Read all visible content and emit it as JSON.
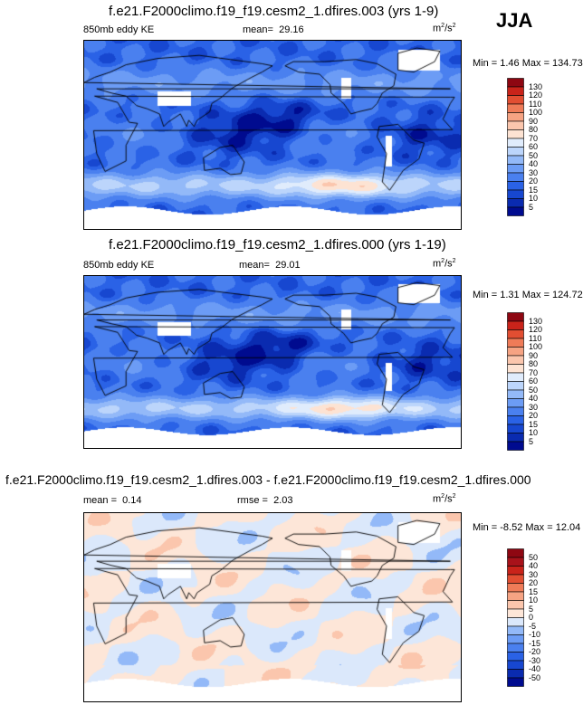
{
  "season": "JJA",
  "variable_label": "850mb eddy KE",
  "units_base": "m",
  "units_exp1": "2",
  "units_sep": "/s",
  "units_exp2": "2",
  "panels": [
    {
      "title": "f.e21.F2000climo.f19_f19.cesm2_1.dfires.003 (yrs 1-9)",
      "stat_label": "mean=",
      "stat_value": "29.16",
      "minmax": "Min =   1.46 Max = 134.73"
    },
    {
      "title": "f.e21.F2000climo.f19_f19.cesm2_1.dfires.000 (yrs 1-19)",
      "stat_label": "mean=",
      "stat_value": "29.01",
      "minmax": "Min =   1.31 Max = 124.72"
    },
    {
      "title": "f.e21.F2000climo.f19_f19.cesm2_1.dfires.003 - f.e21.F2000climo.f19_f19.cesm2_1.dfires.000",
      "stat_label": "mean =",
      "stat_value": "0.14",
      "stat2_label": "rmse =",
      "stat2_value": "2.03",
      "minmax": "Min =  -8.52 Max =  12.04"
    }
  ],
  "chart_data": [
    {
      "type": "heatmap",
      "title": "f.e21.F2000climo.f19_f19.cesm2_1.dfires.003 (yrs 1-9)",
      "variable": "850mb eddy KE",
      "mean": 29.16,
      "min": 1.46,
      "max": 134.73,
      "colorbar_levels": [
        "5",
        "10",
        "15",
        "20",
        "30",
        "40",
        "50",
        "60",
        "70",
        "80",
        "90",
        "100",
        "110",
        "120",
        "130"
      ],
      "colorbar_colors": [
        "#000b8f",
        "#0a2bb0",
        "#1747d0",
        "#2a62e6",
        "#4a80ef",
        "#6c9cf5",
        "#93b9f8",
        "#bcd5fb",
        "#e0ecfc",
        "#fde3d3",
        "#fbc6ad",
        "#f6a383",
        "#ef7b58",
        "#e24e32",
        "#c9231a",
        "#8e0712"
      ]
    },
    {
      "type": "heatmap",
      "title": "f.e21.F2000climo.f19_f19.cesm2_1.dfires.000 (yrs 1-19)",
      "variable": "850mb eddy KE",
      "mean": 29.01,
      "min": 1.31,
      "max": 124.72,
      "colorbar_levels": [
        "5",
        "10",
        "15",
        "20",
        "30",
        "40",
        "50",
        "60",
        "70",
        "80",
        "90",
        "100",
        "110",
        "120",
        "130"
      ],
      "colorbar_colors": [
        "#000b8f",
        "#0a2bb0",
        "#1747d0",
        "#2a62e6",
        "#4a80ef",
        "#6c9cf5",
        "#93b9f8",
        "#bcd5fb",
        "#e0ecfc",
        "#fde3d3",
        "#fbc6ad",
        "#f6a383",
        "#ef7b58",
        "#e24e32",
        "#c9231a",
        "#8e0712"
      ]
    },
    {
      "type": "heatmap",
      "title": "f.e21.F2000climo.f19_f19.cesm2_1.dfires.003 - f.e21.F2000climo.f19_f19.cesm2_1.dfires.000",
      "mean": 0.14,
      "rmse": 2.03,
      "min": -8.52,
      "max": 12.04,
      "colorbar_levels": [
        "-50",
        "-40",
        "-30",
        "-20",
        "-15",
        "-10",
        "-5",
        "0",
        "5",
        "10",
        "15",
        "20",
        "30",
        "40",
        "50"
      ],
      "colorbar_colors": [
        "#000b8f",
        "#0a2bb0",
        "#1747d0",
        "#2a62e6",
        "#4a80ef",
        "#6c9cf5",
        "#93b9f8",
        "#dbe8fb",
        "#fde6d8",
        "#fbc6ad",
        "#f6a383",
        "#ef7b58",
        "#e24e32",
        "#c9231a",
        "#a8121a",
        "#8e0712"
      ]
    }
  ]
}
